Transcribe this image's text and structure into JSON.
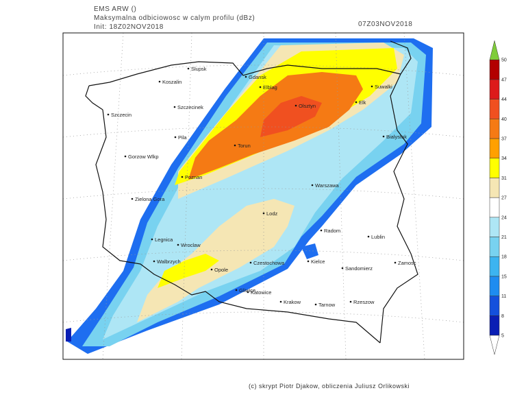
{
  "header": {
    "model": "EMS ARW ()",
    "subtitle": "Maksymalna odbiciowosc w calym profilu (dBz)",
    "init": "Init: 18Z02NOV2018",
    "valid": "07Z03NOV2018"
  },
  "cities": [
    "Slupsk",
    "Koszalin",
    "Szczecinek",
    "Szczecin",
    "Pila",
    "Gorzow Wlkp",
    "Poznan",
    "Zielona Gora",
    "Legnica",
    "Wroclaw",
    "Walbrzych",
    "Opole",
    "Gliwice",
    "Katowice",
    "Krakow",
    "Tarnow",
    "Rzeszow",
    "Czestochowa",
    "Kielce",
    "Sandomierz",
    "Zamosc",
    "Lublin",
    "Radom",
    "Lodz",
    "Warszawa",
    "Torun",
    "Olsztyn",
    "Elblag",
    "Gdansk",
    "Elk",
    "Suwalki",
    "Bialystok"
  ],
  "colorbar": {
    "levels": [
      5,
      8,
      11,
      15,
      18,
      21,
      24,
      27,
      31,
      34,
      37,
      40,
      44,
      47,
      50
    ],
    "colors": [
      "#0a1eb4",
      "#1450dc",
      "#1e8cf0",
      "#3cb4f0",
      "#78d2f0",
      "#aee6f5",
      "#ffffff",
      "#f5e6b4",
      "#ffff00",
      "#ffa000",
      "#f57a14",
      "#f05020",
      "#dd1a1a",
      "#b30000"
    ],
    "under_color": "#ffffff",
    "over_color": "#7fcc3a"
  },
  "footer": "(c) skrypt Piotr Djakow, obliczenia Juliusz Orlikowski"
}
